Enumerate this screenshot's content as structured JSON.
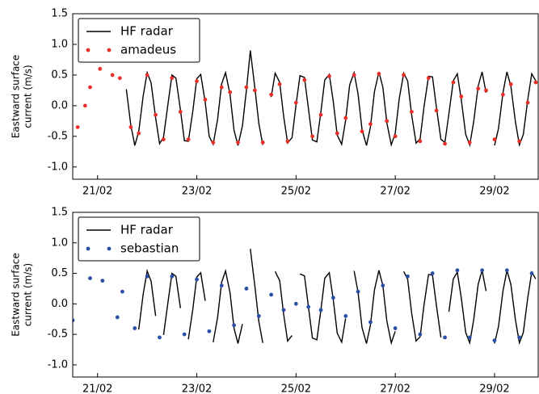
{
  "chart_data": [
    {
      "type": "line",
      "ylabel": [
        "Eastward surface",
        "current (m/s)"
      ],
      "legend": "upper left",
      "xlim": [
        20.5,
        29.88
      ],
      "ylim": [
        -1.2,
        1.5
      ],
      "xticks": [
        {
          "value": 21,
          "label": "21/02"
        },
        {
          "value": 23,
          "label": "23/02"
        },
        {
          "value": 25,
          "label": "25/02"
        },
        {
          "value": 27,
          "label": "27/02"
        },
        {
          "value": 29,
          "label": "29/02"
        }
      ],
      "yticks": [
        1.5,
        {
          "value": 1.0,
          "label": "1.0"
        },
        {
          "value": 0.5,
          "label": "0.5"
        },
        {
          "value": 0.0,
          "label": "0.0"
        },
        -0.5,
        {
          "value": -1.0,
          "label": "-1.0"
        }
      ],
      "series": [
        {
          "name": "HF radar",
          "type": "line",
          "color": "#000000",
          "x": [
            21.5,
            21.58,
            21.67,
            21.75,
            21.83,
            21.92,
            22.0,
            22.08,
            22.17,
            22.25,
            22.33,
            22.42,
            22.5,
            22.58,
            22.67,
            22.75,
            22.83,
            22.92,
            23.0,
            23.08,
            23.17,
            23.25,
            23.33,
            23.42,
            23.5,
            23.58,
            23.67,
            23.75,
            23.83,
            23.92,
            24.0,
            24.08,
            24.17,
            24.25,
            24.33,
            24.42,
            24.5,
            24.58,
            24.67,
            24.75,
            24.83,
            24.92,
            25.0,
            25.08,
            25.17,
            25.25,
            25.33,
            25.42,
            25.5,
            25.58,
            25.67,
            25.75,
            25.83,
            25.92,
            26.0,
            26.08,
            26.17,
            26.25,
            26.33,
            26.42,
            26.5,
            26.58,
            26.67,
            26.75,
            26.83,
            26.92,
            27.0,
            27.08,
            27.17,
            27.25,
            27.33,
            27.42,
            27.5,
            27.58,
            27.67,
            27.75,
            27.83,
            27.92,
            28.0,
            28.08,
            28.17,
            28.25,
            28.33,
            28.42,
            28.5,
            28.58,
            28.67,
            28.75,
            28.83,
            28.92,
            29.0,
            29.08,
            29.17,
            29.25,
            29.33,
            29.42,
            29.5,
            29.58,
            29.67,
            29.75,
            29.83
          ],
          "values": [
            null,
            0.27,
            -0.31,
            -0.65,
            -0.42,
            0.16,
            0.54,
            0.37,
            -0.2,
            -0.62,
            -0.51,
            0.03,
            0.5,
            0.45,
            -0.07,
            -0.57,
            -0.58,
            -0.09,
            0.44,
            0.51,
            0.05,
            -0.5,
            -0.63,
            -0.22,
            0.35,
            0.54,
            0.18,
            -0.4,
            -0.65,
            -0.33,
            0.25,
            0.9,
            0.29,
            -0.29,
            -0.64,
            null,
            0.14,
            0.53,
            0.38,
            -0.17,
            -0.61,
            -0.52,
            0.01,
            0.49,
            0.46,
            -0.05,
            -0.56,
            -0.59,
            -0.11,
            0.42,
            0.51,
            0.07,
            -0.48,
            -0.63,
            -0.24,
            0.34,
            0.54,
            0.19,
            -0.39,
            -0.65,
            -0.35,
            0.23,
            0.55,
            0.3,
            -0.28,
            -0.64,
            -0.45,
            0.12,
            0.53,
            0.4,
            -0.15,
            -0.61,
            -0.54,
            -0.01,
            0.48,
            0.47,
            -0.03,
            -0.55,
            -0.6,
            -0.13,
            0.41,
            0.52,
            0.1,
            -0.47,
            -0.64,
            -0.26,
            0.32,
            0.55,
            0.21,
            null,
            -0.65,
            -0.37,
            0.21,
            0.55,
            0.32,
            -0.26,
            -0.64,
            -0.47,
            0.1,
            0.52,
            0.41
          ]
        },
        {
          "name": "amadeus",
          "type": "scatter",
          "color": "#e8302a",
          "x": [
            20.6,
            20.75,
            20.85,
            21.05,
            21.3,
            21.45,
            21.67,
            21.83,
            22.0,
            22.17,
            22.33,
            22.5,
            22.67,
            22.83,
            23.0,
            23.17,
            23.33,
            23.5,
            23.67,
            23.83,
            24.0,
            24.17,
            24.33,
            24.5,
            24.67,
            24.83,
            25.0,
            25.17,
            25.33,
            25.5,
            25.67,
            25.83,
            26.0,
            26.17,
            26.33,
            26.5,
            26.67,
            26.83,
            27.0,
            27.17,
            27.33,
            27.5,
            27.67,
            27.83,
            28.0,
            28.17,
            28.33,
            28.5,
            28.67,
            28.83,
            29.0,
            29.17,
            29.33,
            29.5,
            29.67,
            29.83
          ],
          "values": [
            -0.35,
            0.0,
            0.3,
            0.6,
            0.5,
            0.45,
            -0.35,
            -0.45,
            0.5,
            -0.15,
            -0.55,
            0.45,
            -0.1,
            -0.55,
            0.4,
            0.1,
            -0.6,
            0.3,
            0.22,
            -0.6,
            0.3,
            0.25,
            -0.6,
            0.18,
            0.35,
            -0.58,
            0.05,
            0.42,
            -0.5,
            -0.15,
            0.48,
            -0.45,
            -0.2,
            0.5,
            -0.42,
            -0.3,
            0.52,
            -0.25,
            -0.5,
            0.5,
            -0.1,
            -0.58,
            0.45,
            -0.08,
            -0.62,
            0.38,
            0.15,
            -0.6,
            0.28,
            0.25,
            -0.55,
            0.18,
            0.35,
            -0.58,
            0.05,
            0.38
          ]
        }
      ]
    },
    {
      "type": "line",
      "ylabel": [
        "Eastward surface",
        "current (m/s)"
      ],
      "legend": "upper left",
      "xlim": [
        20.5,
        29.88
      ],
      "ylim": [
        -1.2,
        1.5
      ],
      "xticks": [
        {
          "value": 21,
          "label": "21/02"
        },
        {
          "value": 23,
          "label": "23/02"
        },
        {
          "value": 25,
          "label": "25/02"
        },
        {
          "value": 27,
          "label": "27/02"
        },
        {
          "value": 29,
          "label": "29/02"
        }
      ],
      "yticks": [
        1.5,
        {
          "value": 1.0,
          "label": "1.0"
        },
        {
          "value": 0.5,
          "label": "0.5"
        },
        {
          "value": 0.0,
          "label": "0.0"
        },
        -0.5,
        {
          "value": -1.0,
          "label": "-1.0"
        }
      ],
      "series": [
        {
          "name": "HF radar",
          "type": "line",
          "color": "#000000",
          "x": [
            21.5,
            21.58,
            21.67,
            21.75,
            21.83,
            21.92,
            22.0,
            22.08,
            22.17,
            22.25,
            22.33,
            22.42,
            22.5,
            22.58,
            22.67,
            22.75,
            22.83,
            22.92,
            23.0,
            23.08,
            23.17,
            23.25,
            23.33,
            23.42,
            23.5,
            23.58,
            23.67,
            23.75,
            23.83,
            23.92,
            24.0,
            24.08,
            24.17,
            24.25,
            24.33,
            24.42,
            24.5,
            24.58,
            24.67,
            24.75,
            24.83,
            24.92,
            25.0,
            25.08,
            25.17,
            25.25,
            25.33,
            25.42,
            25.5,
            25.58,
            25.67,
            25.75,
            25.83,
            25.92,
            26.0,
            26.08,
            26.17,
            26.25,
            26.33,
            26.42,
            26.5,
            26.58,
            26.67,
            26.75,
            26.83,
            26.92,
            27.0,
            27.08,
            27.17,
            27.25,
            27.33,
            27.42,
            27.5,
            27.58,
            27.67,
            27.75,
            27.83,
            27.92,
            28.0,
            28.08,
            28.17,
            28.25,
            28.33,
            28.42,
            28.5,
            28.58,
            28.67,
            28.75,
            28.83,
            28.92,
            29.0,
            29.08,
            29.17,
            29.25,
            29.33,
            29.42,
            29.5,
            29.58,
            29.67,
            29.75,
            29.83
          ],
          "values": [
            null,
            null,
            null,
            null,
            -0.42,
            0.16,
            0.54,
            0.37,
            -0.2,
            null,
            -0.51,
            0.03,
            0.5,
            0.45,
            -0.07,
            null,
            -0.58,
            -0.09,
            0.44,
            0.51,
            0.05,
            null,
            -0.63,
            -0.22,
            0.35,
            0.54,
            0.18,
            -0.4,
            -0.65,
            -0.33,
            null,
            0.9,
            0.29,
            -0.29,
            -0.64,
            null,
            null,
            0.53,
            0.38,
            -0.17,
            -0.61,
            -0.52,
            null,
            0.49,
            0.46,
            -0.05,
            -0.56,
            -0.59,
            -0.11,
            0.42,
            0.51,
            0.07,
            -0.48,
            -0.63,
            -0.24,
            null,
            0.54,
            0.19,
            -0.39,
            -0.65,
            -0.35,
            0.23,
            0.55,
            0.3,
            -0.28,
            -0.64,
            -0.45,
            null,
            0.53,
            0.4,
            -0.15,
            -0.61,
            -0.54,
            -0.01,
            0.48,
            0.47,
            -0.03,
            -0.55,
            null,
            -0.13,
            0.41,
            0.52,
            0.1,
            -0.47,
            -0.64,
            -0.26,
            0.32,
            0.55,
            0.21,
            null,
            -0.65,
            -0.37,
            0.21,
            0.55,
            0.32,
            -0.26,
            -0.64,
            -0.47,
            0.1,
            0.52,
            0.41
          ]
        },
        {
          "name": "sebastian",
          "type": "scatter",
          "color": "#2a4fa8",
          "x": [
            20.5,
            20.85,
            21.1,
            21.4,
            21.5,
            21.75,
            22.0,
            22.25,
            22.5,
            22.75,
            23.0,
            23.25,
            23.5,
            23.75,
            24.0,
            24.25,
            24.5,
            24.75,
            25.0,
            25.25,
            25.5,
            25.75,
            26.0,
            26.25,
            26.5,
            26.75,
            27.0,
            27.25,
            27.5,
            27.75,
            28.0,
            28.25,
            28.5,
            28.75,
            29.0,
            29.25,
            29.5,
            29.75
          ],
          "values": [
            -0.27,
            0.42,
            0.38,
            -0.22,
            0.2,
            -0.4,
            0.45,
            -0.55,
            0.45,
            -0.5,
            0.4,
            -0.45,
            0.3,
            -0.35,
            0.25,
            -0.2,
            0.15,
            -0.1,
            0.0,
            -0.05,
            -0.1,
            0.1,
            -0.2,
            0.2,
            -0.3,
            0.3,
            -0.4,
            0.45,
            -0.5,
            0.5,
            -0.55,
            0.55,
            -0.55,
            0.55,
            -0.6,
            0.55,
            -0.55,
            0.5
          ]
        }
      ]
    }
  ]
}
